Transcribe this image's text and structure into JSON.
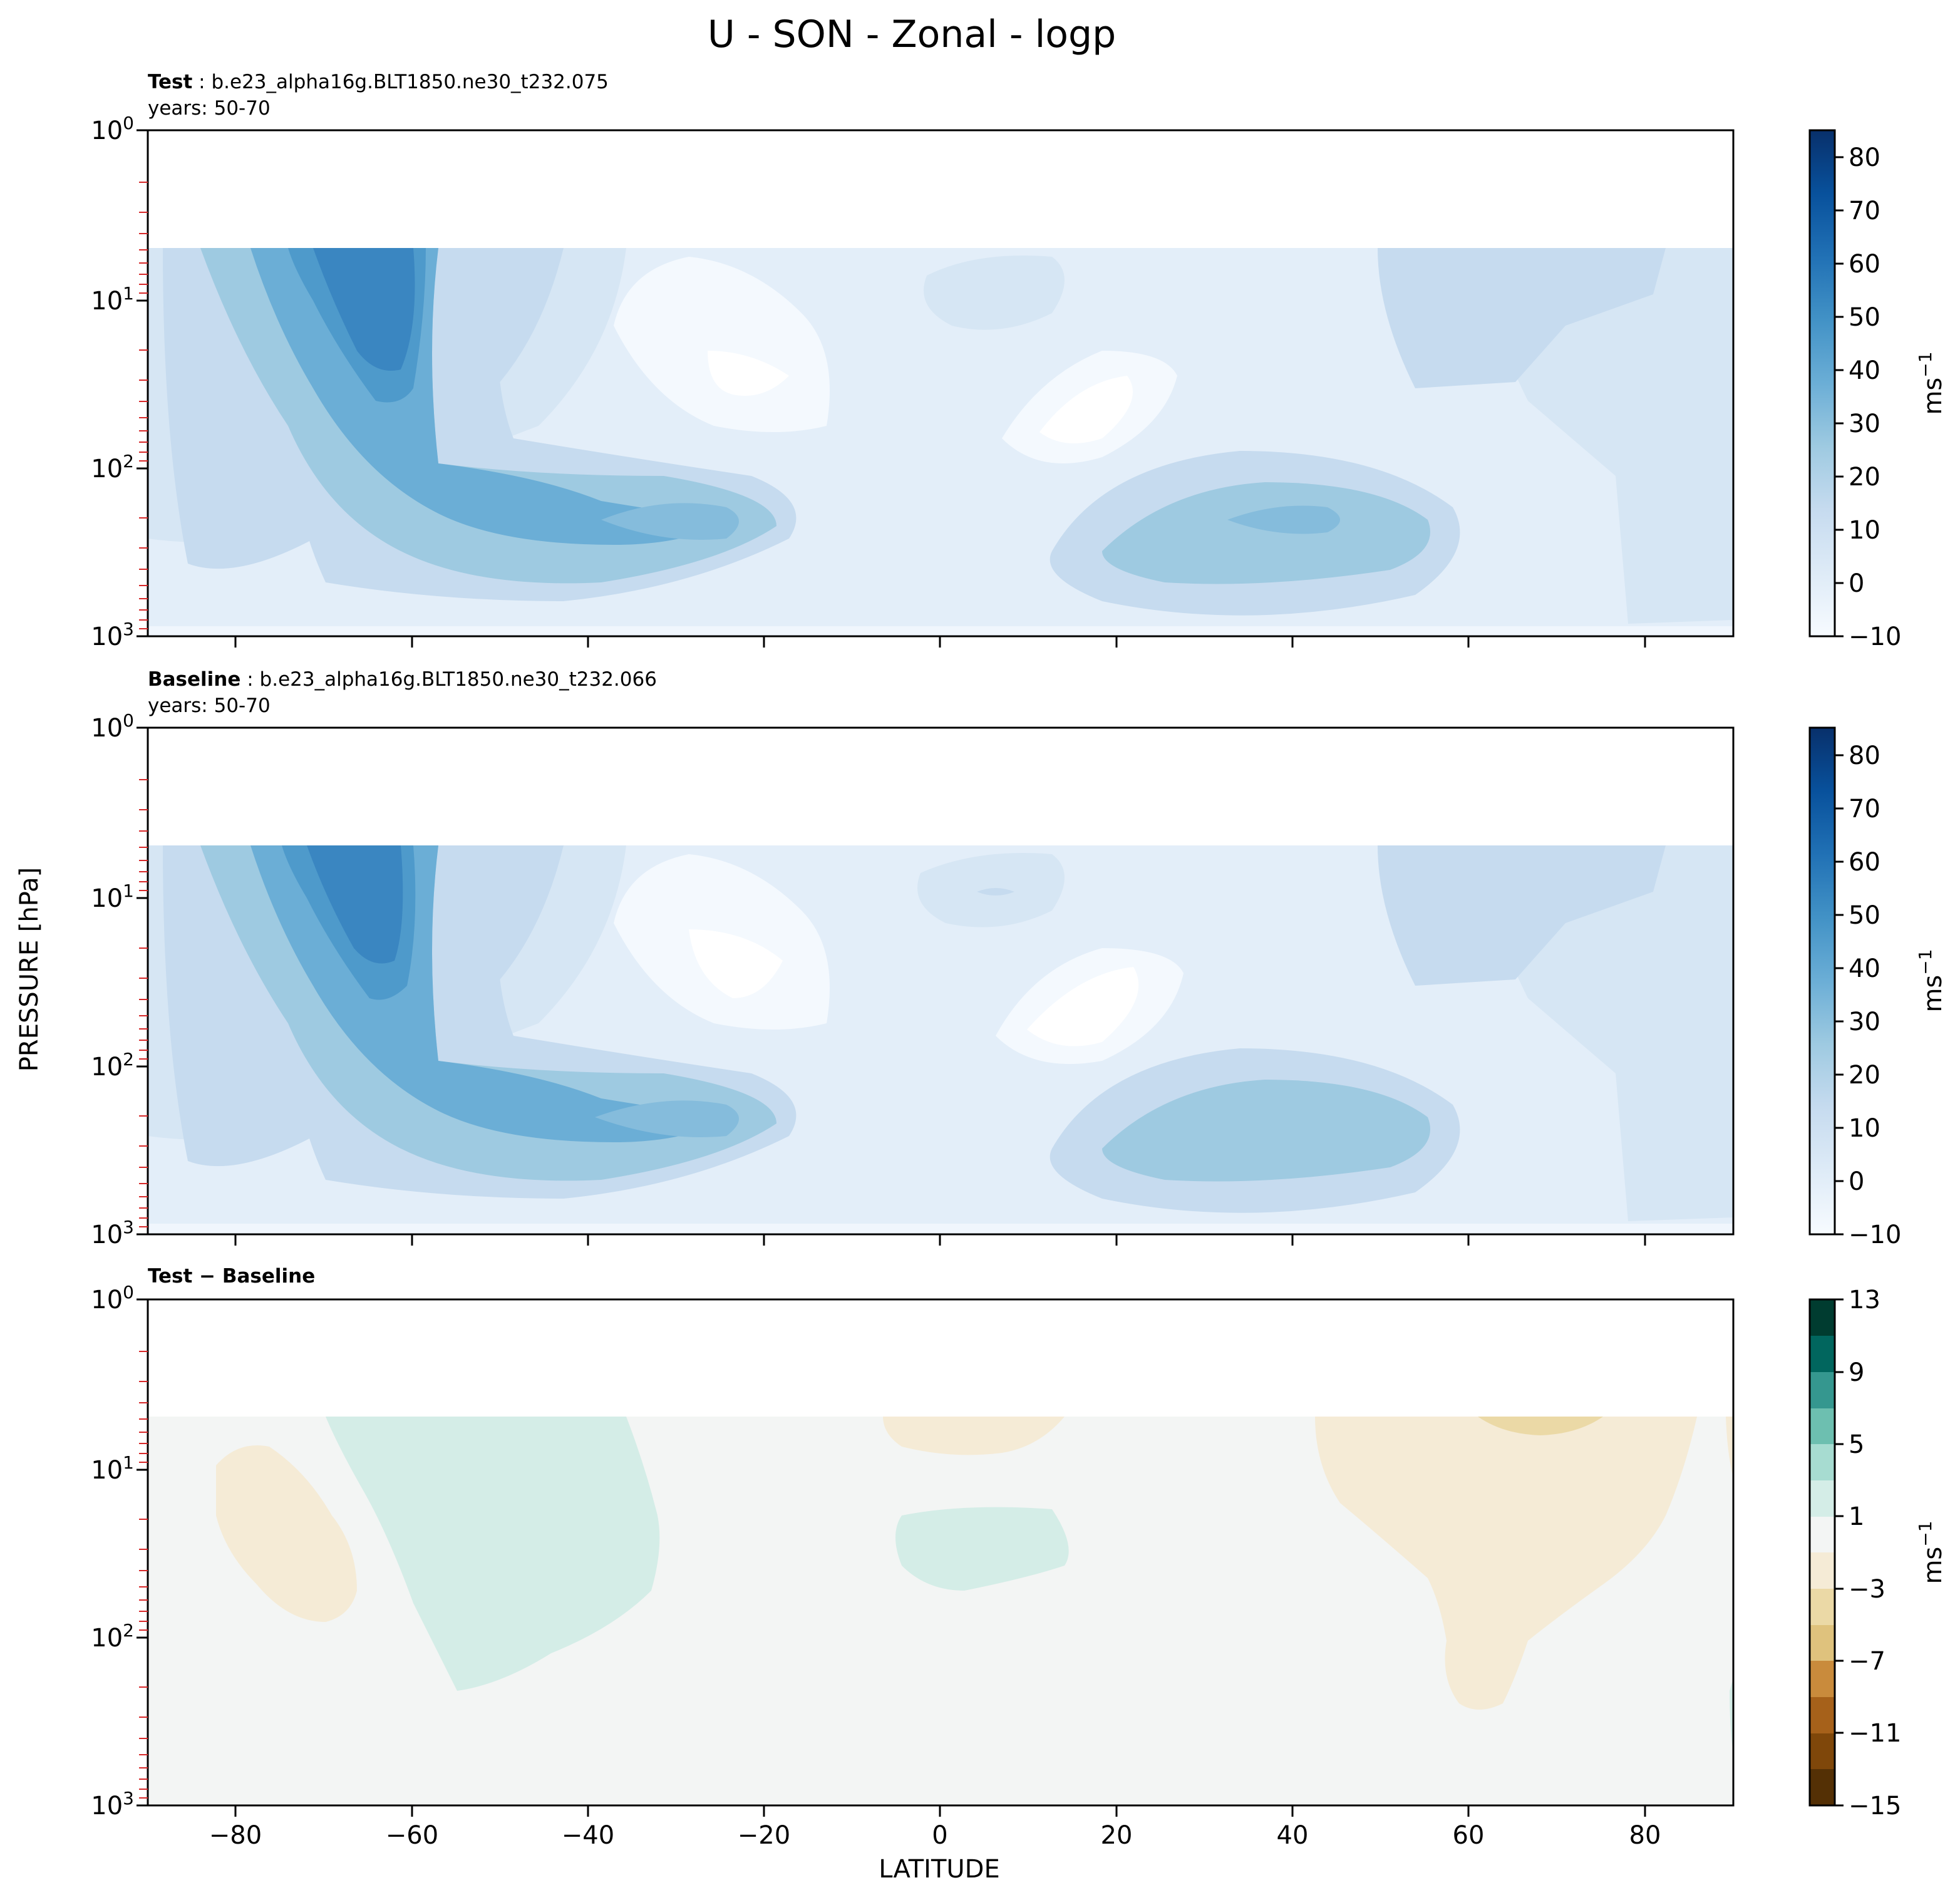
{
  "figure": {
    "title": "U - SON - Zonal - logp",
    "xlabel": "LATITUDE",
    "ylabel": "PRESSURE [hPa]"
  },
  "chart_data": [
    {
      "type": "heatmap",
      "name": "Test",
      "case": "b.e23_alpha16g.BLT1850.ne30_t232.075",
      "years_label": "years: 50-70",
      "variable": "U",
      "units": "m s^-1",
      "x_axis": {
        "lim": [
          -90,
          90
        ],
        "ticks": [
          -80,
          -60,
          -40,
          -20,
          0,
          20,
          40,
          60,
          80
        ]
      },
      "y_axis": {
        "scale": "log",
        "inverted": true,
        "lim": [
          1,
          1000
        ],
        "ticks": [
          "10^0",
          "10^1",
          "10^2",
          "10^3"
        ]
      },
      "data_top_hPa": 5,
      "colorbar": {
        "cmap": "Blues",
        "levels": [
          -10,
          -5,
          0,
          5,
          10,
          15,
          20,
          25,
          30,
          35,
          40,
          45,
          50,
          55,
          60,
          65,
          70,
          75,
          80,
          85
        ],
        "ticks": [
          -10,
          0,
          10,
          20,
          30,
          40,
          50,
          60,
          70,
          80
        ]
      },
      "features": [
        {
          "lat": -65,
          "p": 10,
          "value": 55
        },
        {
          "lat": -30,
          "p": 200,
          "value": 30
        },
        {
          "lat": 42,
          "p": 200,
          "value": 27
        },
        {
          "lat": -22,
          "p": 25,
          "value": -8
        }
      ]
    },
    {
      "type": "heatmap",
      "name": "Baseline",
      "case": "b.e23_alpha16g.BLT1850.ne30_t232.066",
      "years_label": "years: 50-70",
      "variable": "U",
      "units": "m s^-1",
      "x_axis": {
        "lim": [
          -90,
          90
        ],
        "ticks": [
          -80,
          -60,
          -40,
          -20,
          0,
          20,
          40,
          60,
          80
        ]
      },
      "y_axis": {
        "scale": "log",
        "inverted": true,
        "lim": [
          1,
          1000
        ],
        "ticks": [
          "10^0",
          "10^1",
          "10^2",
          "10^3"
        ]
      },
      "data_top_hPa": 5,
      "colorbar": {
        "cmap": "Blues",
        "levels": [
          -10,
          -5,
          0,
          5,
          10,
          15,
          20,
          25,
          30,
          35,
          40,
          45,
          50,
          55,
          60,
          65,
          70,
          75,
          80,
          85
        ],
        "ticks": [
          -10,
          0,
          10,
          20,
          30,
          40,
          50,
          60,
          70,
          80
        ]
      },
      "features": [
        {
          "lat": -65,
          "p": 10,
          "value": 55
        },
        {
          "lat": -30,
          "p": 200,
          "value": 30
        },
        {
          "lat": 42,
          "p": 200,
          "value": 26
        },
        {
          "lat": -22,
          "p": 25,
          "value": -8
        }
      ]
    },
    {
      "type": "heatmap",
      "name": "Test − Baseline",
      "variable": "U difference",
      "units": "m s^-1",
      "x_axis": {
        "lim": [
          -90,
          90
        ],
        "ticks": [
          -80,
          -60,
          -40,
          -20,
          0,
          20,
          40,
          60,
          80
        ]
      },
      "y_axis": {
        "scale": "log",
        "inverted": true,
        "lim": [
          1,
          1000
        ],
        "ticks": [
          "10^0",
          "10^1",
          "10^2",
          "10^3"
        ]
      },
      "data_top_hPa": 5,
      "colorbar": {
        "cmap": "BrBG",
        "levels": [
          -15,
          -13,
          -11,
          -9,
          -7,
          -5,
          -3,
          -1,
          1,
          3,
          5,
          7,
          9,
          11,
          13
        ],
        "ticks": [
          -15,
          -11,
          -7,
          -3,
          1,
          5,
          9,
          13
        ]
      },
      "features": [
        {
          "lat": -45,
          "p": 30,
          "value": 2
        },
        {
          "lat": 10,
          "p": 30,
          "value": 2
        },
        {
          "lat": -75,
          "p": 20,
          "value": -2
        },
        {
          "lat": 65,
          "p": 30,
          "value": -2
        },
        {
          "lat": 68,
          "p": 6,
          "value": -4
        }
      ]
    }
  ]
}
